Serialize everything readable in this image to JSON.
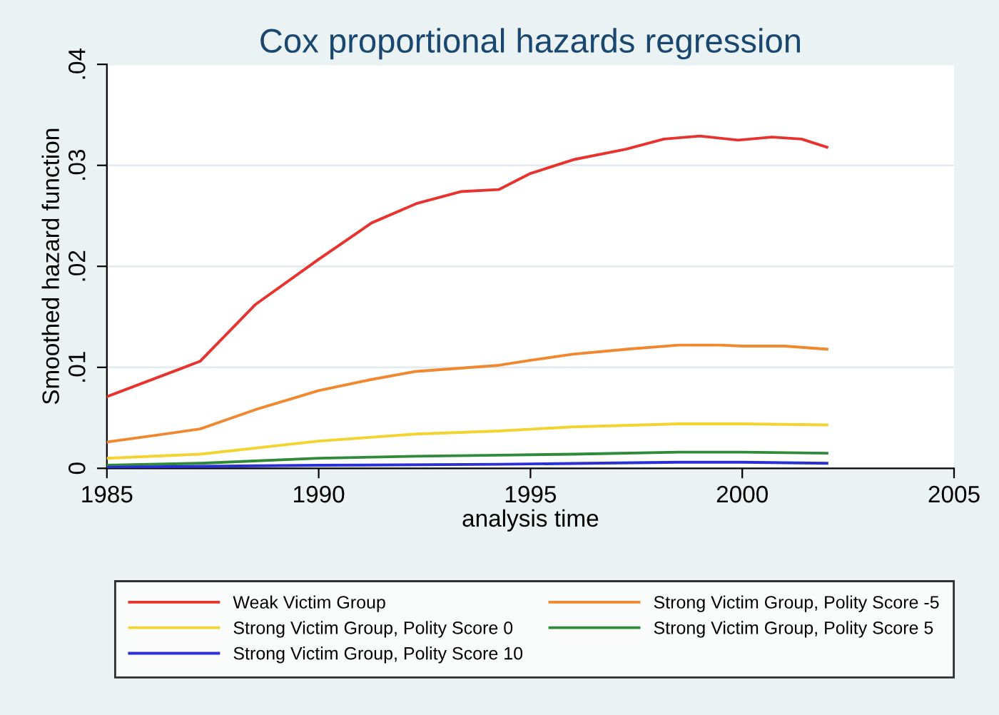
{
  "chart_data": {
    "type": "line",
    "title": "Cox proportional hazards regression",
    "xlabel": "analysis time",
    "ylabel": "Smoothed hazard function",
    "xlim": [
      1985,
      2005
    ],
    "xticks": [
      1985,
      1990,
      1995,
      2000,
      2005
    ],
    "ylim": [
      0,
      0.04
    ],
    "yticks": [
      {
        "value": 0,
        "label": "0"
      },
      {
        "value": 0.01,
        "label": ".01"
      },
      {
        "value": 0.02,
        "label": ".02"
      },
      {
        "value": 0.03,
        "label": ".03"
      },
      {
        "value": 0.04,
        "label": ".04"
      }
    ],
    "grid": "y",
    "legend": "bottom",
    "marker": "none",
    "line_style": "solid",
    "series": [
      {
        "name": "Weak Victim Group",
        "color": "#e8322e",
        "x": [
          1985,
          1986.2,
          1987.2,
          1988.5,
          1990,
          1991.25,
          1992.3,
          1993.35,
          1994.25,
          1995,
          1996.05,
          1997.25,
          1998.15,
          1999,
          1999.9,
          2000.7,
          2001.4,
          2002
        ],
        "values": [
          0.0071,
          0.009,
          0.0106,
          0.0162,
          0.0207,
          0.0243,
          0.0262,
          0.0274,
          0.0276,
          0.0292,
          0.0306,
          0.0316,
          0.0326,
          0.0329,
          0.0325,
          0.0328,
          0.0326,
          0.0318
        ]
      },
      {
        "name": "Strong Victim Group, Polity Score -5",
        "color": "#f0882f",
        "x": [
          1985,
          1986.2,
          1987.2,
          1988.5,
          1990,
          1991.25,
          1992.3,
          1994.25,
          1995,
          1996,
          1997.3,
          1998.5,
          1999.5,
          2000,
          2001,
          2002
        ],
        "values": [
          0.0026,
          0.0033,
          0.0039,
          0.0058,
          0.0077,
          0.0088,
          0.0096,
          0.0102,
          0.0107,
          0.0113,
          0.0118,
          0.0122,
          0.0122,
          0.0121,
          0.0121,
          0.0118
        ]
      },
      {
        "name": "Strong Victim Group, Polity Score 0",
        "color": "#f2d330",
        "x": [
          1985,
          1987.2,
          1990,
          1992.3,
          1994.25,
          1996,
          1998.5,
          2000,
          2002
        ],
        "values": [
          0.001,
          0.0014,
          0.0027,
          0.0034,
          0.0037,
          0.0041,
          0.0044,
          0.0044,
          0.0043
        ]
      },
      {
        "name": "Strong Victim Group, Polity Score 5",
        "color": "#2f8a3a",
        "x": [
          1985,
          1987.2,
          1990,
          1992.3,
          1994.25,
          1996,
          1998.5,
          2000,
          2002
        ],
        "values": [
          0.0003,
          0.0005,
          0.001,
          0.0012,
          0.0013,
          0.0014,
          0.0016,
          0.0016,
          0.0015
        ]
      },
      {
        "name": "Strong Victim Group, Polity Score 10",
        "color": "#2a2fd6",
        "x": [
          1985,
          1987.2,
          1990,
          1994.25,
          1998.5,
          2000,
          2002
        ],
        "values": [
          0.0001,
          0.0002,
          0.0003,
          0.0004,
          0.0006,
          0.0006,
          0.0005
        ]
      }
    ]
  }
}
